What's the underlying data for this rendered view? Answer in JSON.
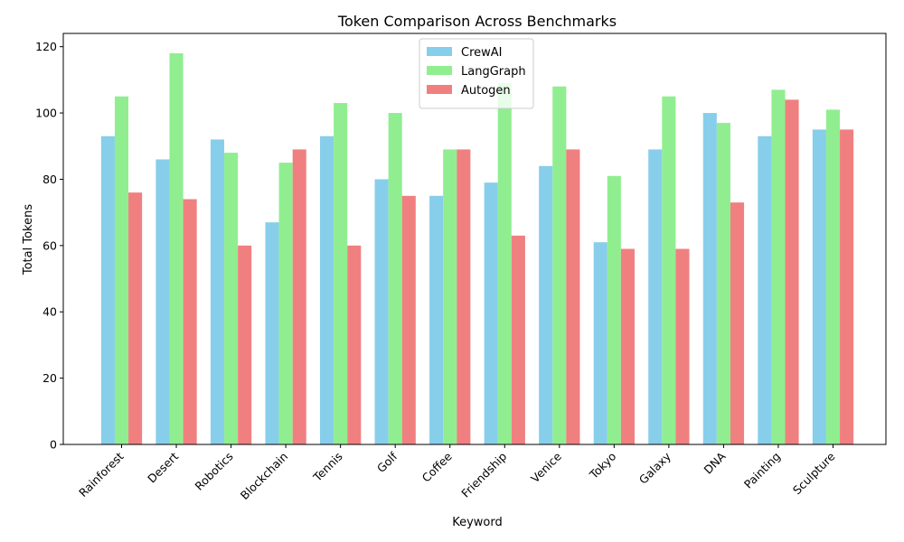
{
  "chart_data": {
    "type": "bar",
    "title": "Token Comparison Across Benchmarks",
    "xlabel": "Keyword",
    "ylabel": "Total Tokens",
    "ylim": [
      0,
      124
    ],
    "yticks": [
      0,
      20,
      40,
      60,
      80,
      100,
      120
    ],
    "grid": false,
    "legend_position": "top-center",
    "categories": [
      "Rainforest",
      "Desert",
      "Robotics",
      "Blockchain",
      "Tennis",
      "Golf",
      "Coffee",
      "Friendship",
      "Venice",
      "Tokyo",
      "Galaxy",
      "DNA",
      "Painting",
      "Sculpture"
    ],
    "series": [
      {
        "name": "CrewAI",
        "color": "#87ceeb",
        "values": [
          93,
          86,
          92,
          67,
          93,
          80,
          75,
          79,
          84,
          61,
          89,
          100,
          93,
          95
        ]
      },
      {
        "name": "LangGraph",
        "color": "#90ee90",
        "values": [
          105,
          118,
          88,
          85,
          103,
          100,
          89,
          109,
          108,
          81,
          105,
          97,
          107,
          101
        ]
      },
      {
        "name": "Autogen",
        "color": "#f08080",
        "values": [
          76,
          74,
          60,
          89,
          60,
          75,
          89,
          63,
          89,
          59,
          59,
          73,
          104,
          95
        ]
      }
    ]
  }
}
